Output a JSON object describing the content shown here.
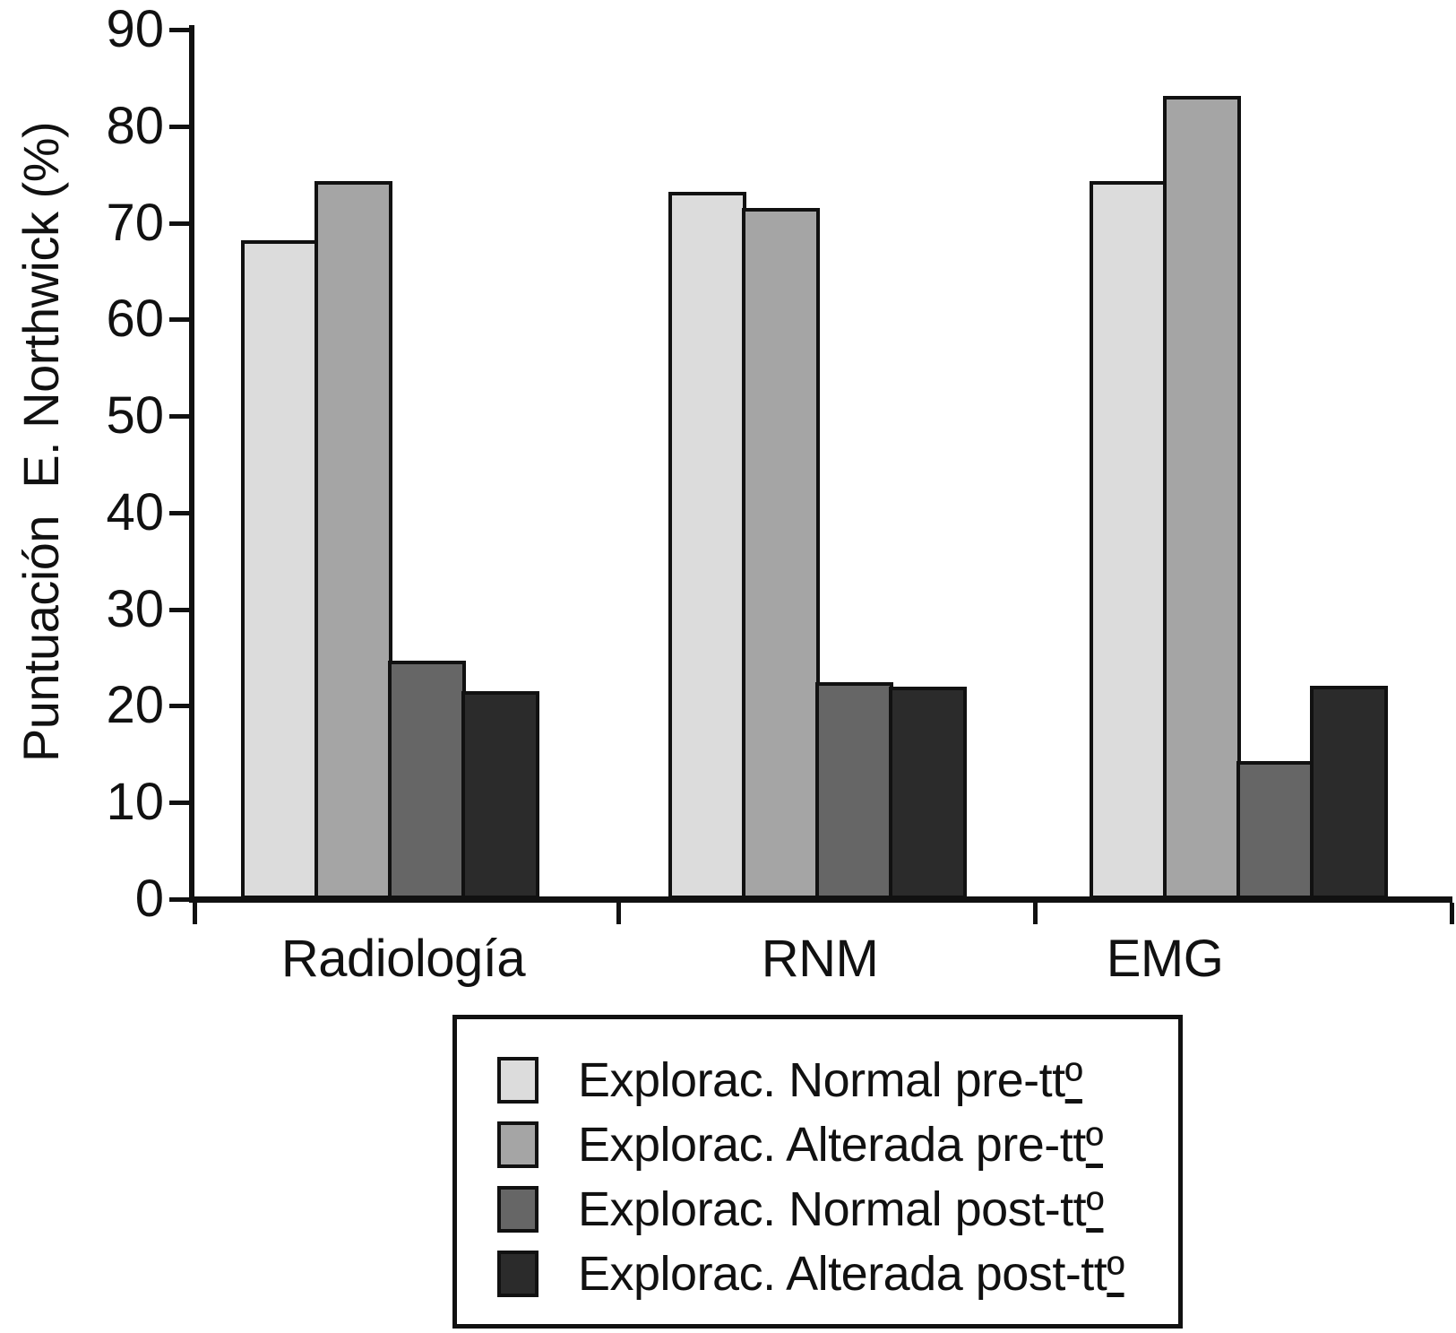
{
  "figure": {
    "background": "#ffffff",
    "axis_color": "#111111"
  },
  "chart_data": {
    "type": "bar",
    "title": "",
    "xlabel": "",
    "ylabel": "Puntuación  E. Northwick (%)",
    "ylim": [
      0,
      90
    ],
    "y_ticks": [
      0,
      10,
      20,
      30,
      40,
      50,
      60,
      70,
      80,
      90
    ],
    "grid": false,
    "legend_position": "bottom-center-boxed",
    "categories": [
      "Radiología",
      "RNM",
      "EMG"
    ],
    "series": [
      {
        "name": "Explorac. Normal pre-ttº",
        "color": "#dcdcdc",
        "values": [
          68.2,
          73.2,
          74.3
        ]
      },
      {
        "name": "Explorac. Alterada pre-ttº",
        "color": "#a5a5a5",
        "values": [
          74.3,
          71.5,
          83.1
        ]
      },
      {
        "name": "Explorac. Normal post-ttº",
        "color": "#666666",
        "values": [
          24.7,
          22.5,
          14.3
        ]
      },
      {
        "name": "Explorac. Alterada post-ttº",
        "color": "#2b2b2b",
        "values": [
          21.5,
          22.0,
          22.1
        ]
      }
    ]
  }
}
